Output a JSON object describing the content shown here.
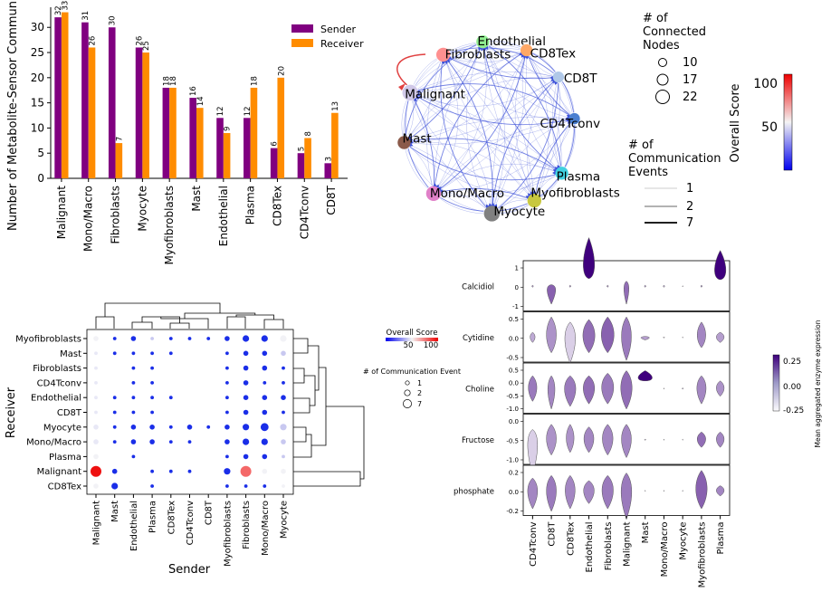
{
  "colors": {
    "sender": "#800080",
    "receiver": "#ff8c00",
    "edge": "#3b4fd8",
    "self_loop": "#e04040",
    "violin_fill": "#9b95c8",
    "violin_dark": "#3f007d"
  },
  "chart_data": [
    {
      "id": "bar",
      "type": "bar",
      "ylabel": "Number of Metabolite-Sensor Commun",
      "ylim": [
        0,
        34
      ],
      "yticks": [
        0,
        5,
        10,
        15,
        20,
        25,
        30
      ],
      "categories": [
        "Malignant",
        "Mono/Macro",
        "Fibroblasts",
        "Myocyte",
        "Myofibroblasts",
        "Mast",
        "Endothelial",
        "Plasma",
        "CD8Tex",
        "CD4Tconv",
        "CD8T"
      ],
      "series": [
        {
          "name": "Sender",
          "values": [
            32,
            31,
            30,
            26,
            18,
            16,
            12,
            12,
            6,
            5,
            3
          ]
        },
        {
          "name": "Receiver",
          "values": [
            33,
            26,
            7,
            25,
            18,
            14,
            9,
            18,
            20,
            8,
            13
          ]
        }
      ],
      "legend": "top-right"
    },
    {
      "id": "network",
      "type": "network",
      "nodes": [
        {
          "name": "Endothelial",
          "color": "#90ee90",
          "size": 13,
          "angle": 94
        },
        {
          "name": "CD8Tex",
          "color": "#ffa866",
          "size": 12,
          "angle": 64
        },
        {
          "name": "CD8T",
          "color": "#b0c8e8",
          "size": 11,
          "angle": 36
        },
        {
          "name": "CD4Tconv",
          "color": "#4a7fd0",
          "size": 11,
          "angle": 6
        },
        {
          "name": "Plasma",
          "color": "#40d0e0",
          "size": 13,
          "angle": -32
        },
        {
          "name": "Myofibroblasts",
          "color": "#c8c840",
          "size": 14,
          "angle": -58
        },
        {
          "name": "Myocyte",
          "color": "#808080",
          "size": 16,
          "angle": -88
        },
        {
          "name": "Mono/Macro",
          "color": "#e080c8",
          "size": 15,
          "angle": -130
        },
        {
          "name": "Mast",
          "color": "#8b5a4a",
          "size": 13,
          "angle": -170
        },
        {
          "name": "Malignant",
          "color": "#d0c8e8",
          "size": 16,
          "angle": 156
        },
        {
          "name": "Fibroblasts",
          "color": "#ff9090",
          "size": 14,
          "angle": 122
        }
      ],
      "legend_nodes": {
        "title": "# of Connected Nodes",
        "values": [
          10,
          17,
          22
        ]
      },
      "legend_events": {
        "title": "# of Communication Events",
        "values": [
          1,
          2,
          7
        ]
      },
      "colorbar": {
        "title": "Overall Score",
        "ticks": [
          50,
          100
        ]
      }
    },
    {
      "id": "dotplot",
      "type": "scatter",
      "xlabel": "Sender",
      "ylabel": "Receiver",
      "senders": [
        "Malignant",
        "Mast",
        "Endothelial",
        "Plasma",
        "CD8Tex",
        "CD4Tconv",
        "CD8T",
        "Myofibroblasts",
        "Fibroblasts",
        "Mono/Macro",
        "Myocyte"
      ],
      "receivers": [
        "Myofibroblasts",
        "Mast",
        "Fibroblasts",
        "CD4Tconv",
        "Endothelial",
        "CD8T",
        "Myocyte",
        "Mono/Macro",
        "Plasma",
        "Malignant",
        "CD8Tex"
      ],
      "values": [
        [
          2,
          1,
          2,
          1,
          1,
          1,
          1,
          2,
          3,
          3,
          3
        ],
        [
          1,
          1,
          1,
          1,
          1,
          0,
          0,
          1,
          2,
          2,
          2
        ],
        [
          1,
          0,
          1,
          1,
          0,
          0,
          0,
          1,
          2,
          2,
          1
        ],
        [
          1,
          0,
          1,
          1,
          0,
          0,
          0,
          1,
          2,
          1,
          1
        ],
        [
          1,
          1,
          1,
          1,
          1,
          0,
          0,
          1,
          2,
          2,
          2
        ],
        [
          1,
          1,
          1,
          1,
          0,
          0,
          0,
          1,
          2,
          2,
          1
        ],
        [
          2,
          1,
          2,
          2,
          1,
          2,
          1,
          2,
          3,
          4,
          3
        ],
        [
          2,
          1,
          2,
          2,
          1,
          1,
          0,
          2,
          3,
          3,
          2
        ],
        [
          2,
          0,
          1,
          0,
          0,
          0,
          0,
          1,
          2,
          2,
          1
        ],
        [
          5,
          2,
          0,
          1,
          1,
          1,
          0,
          3,
          5,
          2,
          2
        ],
        [
          2,
          3,
          0,
          1,
          0,
          0,
          0,
          1,
          1,
          1,
          1
        ]
      ],
      "scores": [
        [
          20,
          60,
          60,
          40,
          60,
          60,
          60,
          60,
          60,
          60,
          20
        ],
        [
          30,
          60,
          60,
          60,
          60,
          0,
          0,
          60,
          60,
          60,
          40
        ],
        [
          30,
          0,
          60,
          60,
          0,
          0,
          0,
          60,
          60,
          60,
          60
        ],
        [
          30,
          0,
          60,
          60,
          0,
          0,
          0,
          60,
          60,
          60,
          60
        ],
        [
          30,
          60,
          60,
          60,
          60,
          0,
          0,
          60,
          60,
          60,
          60
        ],
        [
          30,
          60,
          60,
          60,
          0,
          0,
          0,
          60,
          60,
          60,
          60
        ],
        [
          30,
          60,
          60,
          60,
          60,
          60,
          60,
          60,
          60,
          60,
          40
        ],
        [
          30,
          60,
          60,
          60,
          60,
          60,
          0,
          60,
          60,
          60,
          40
        ],
        [
          20,
          0,
          60,
          0,
          0,
          0,
          0,
          60,
          60,
          60,
          40
        ],
        [
          110,
          60,
          0,
          60,
          60,
          60,
          0,
          60,
          90,
          20,
          20
        ],
        [
          15,
          60,
          0,
          60,
          0,
          0,
          0,
          60,
          60,
          60,
          20
        ]
      ],
      "legend_score": {
        "title": "Overall Score",
        "ticks": [
          50,
          100
        ]
      },
      "legend_events": {
        "title": "# of Communication Event",
        "values": [
          1,
          2,
          7
        ]
      }
    },
    {
      "id": "violin",
      "type": "violin",
      "metabolites": [
        "Calcidiol",
        "Cytidine",
        "Choline",
        "Fructose",
        "phosphate"
      ],
      "categories": [
        "CD4Tconv",
        "CD8T",
        "CD8Tex",
        "Endothelial",
        "Fibroblasts",
        "Malignant",
        "Mast",
        "Mono/Macro",
        "Myocyte",
        "Myofibroblasts",
        "Plasma"
      ],
      "yticks": [
        [
          "1",
          "0",
          "-1"
        ],
        [
          "0.5",
          "0.0",
          "-0.5"
        ],
        [
          "0.5",
          "0.0",
          "-0.5",
          "-1.0"
        ],
        [
          "0.0",
          "-0.5",
          "-1.0"
        ],
        [
          "0.2",
          "0.0",
          "-0.2"
        ]
      ],
      "colorbar": {
        "title": "Mean aggregated enzyme expression",
        "ticks": [
          "0.25",
          "0.00",
          "-0.25"
        ]
      }
    }
  ]
}
